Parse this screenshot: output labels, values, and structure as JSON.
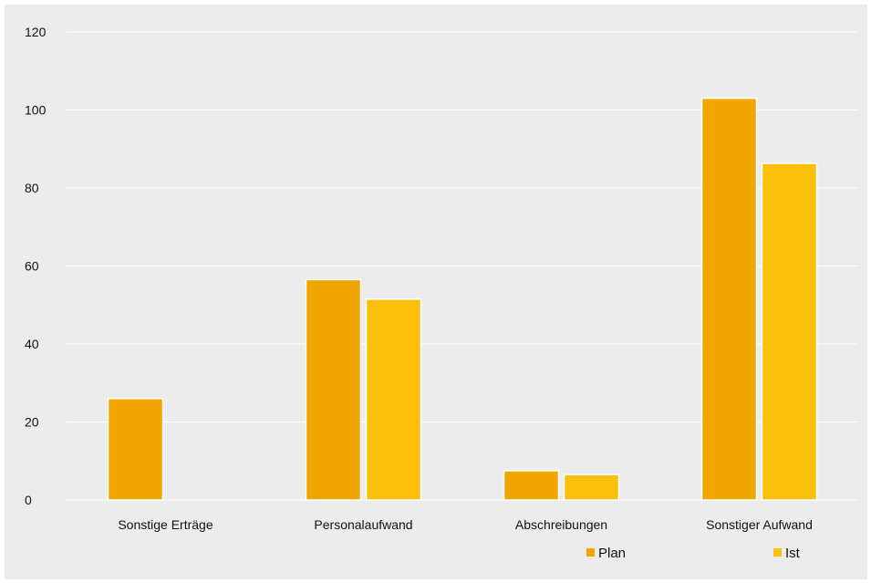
{
  "chart_data": {
    "type": "bar",
    "categories": [
      "Sonstige Erträge",
      "Personalaufwand",
      "Abschreibungen",
      "Sonstiger Aufwand"
    ],
    "series": [
      {
        "name": "Plan",
        "values": [
          26,
          56.5,
          7.5,
          103
        ],
        "color": "#f2a600"
      },
      {
        "name": "Ist",
        "values": [
          0,
          51.5,
          6.5,
          86.3
        ],
        "color": "#fbc10a"
      }
    ],
    "title": "",
    "xlabel": "",
    "ylabel": "",
    "ylim": [
      0,
      120
    ],
    "yticks": [
      0,
      20,
      40,
      60,
      80,
      100,
      120
    ],
    "grid": true,
    "legend_position": "bottom-right",
    "background": "#ececec",
    "gridline_color": "#ffffff"
  }
}
